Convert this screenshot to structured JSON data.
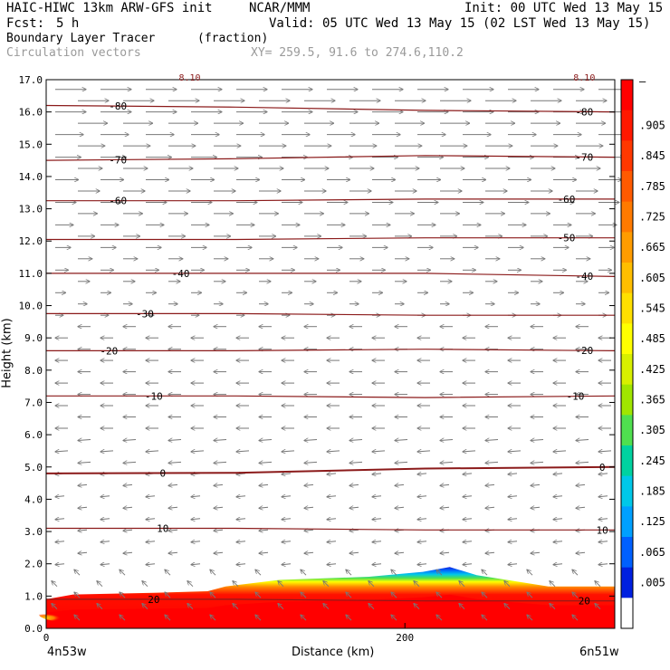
{
  "header": {
    "model": "HAIC-HIWC 13km ARW-GFS init",
    "org": "NCAR/MMM",
    "init": "Init: 00 UTC Wed 13 May 15",
    "fcst_label": "Fcst:",
    "fcst_value": "5 h",
    "valid": "Valid: 05 UTC Wed 13 May 15 (02 LST Wed 13 May 15)",
    "field_name": "Boundary Layer Tracer",
    "field_units": "(fraction)",
    "vector_label": "Circulation vectors",
    "xy_label": "XY= 259.5, 91.6 to 274.6,110.2"
  },
  "chart_data": {
    "type": "heatmap",
    "xlabel": "Distance (km)",
    "ylabel": "Height (km)",
    "xlim": [
      0,
      317
    ],
    "ylim": [
      0.0,
      17.0
    ],
    "x_ticks": [
      {
        "value": 0,
        "label": "0"
      },
      {
        "value": 200,
        "label": "200"
      }
    ],
    "x_end_labels": {
      "left": "4n53w",
      "right": "6n51w"
    },
    "y_ticks": [
      {
        "value": 0.0,
        "label": "0.0"
      },
      {
        "value": 1.0,
        "label": "1.0"
      },
      {
        "value": 2.0,
        "label": "2.0"
      },
      {
        "value": 3.0,
        "label": "3.0"
      },
      {
        "value": 4.0,
        "label": "4.0"
      },
      {
        "value": 5.0,
        "label": "5.0"
      },
      {
        "value": 6.0,
        "label": "6.0"
      },
      {
        "value": 7.0,
        "label": "7.0"
      },
      {
        "value": 8.0,
        "label": "8.0"
      },
      {
        "value": 9.0,
        "label": "9.0"
      },
      {
        "value": 10.0,
        "label": "10.0"
      },
      {
        "value": 11.0,
        "label": "11.0"
      },
      {
        "value": 12.0,
        "label": "12.0"
      },
      {
        "value": 13.0,
        "label": "13.0"
      },
      {
        "value": 14.0,
        "label": "14.0"
      },
      {
        "value": 15.0,
        "label": "15.0"
      },
      {
        "value": 16.0,
        "label": "16.0"
      },
      {
        "value": 17.0,
        "label": "17.0"
      }
    ],
    "colorbar": {
      "labels": [
        "–",
        ".905",
        ".845",
        ".785",
        ".725",
        ".665",
        ".605",
        ".545",
        ".485",
        ".425",
        ".365",
        ".305",
        ".245",
        ".185",
        ".125",
        ".065",
        ".005"
      ],
      "colors": [
        "#ff0000",
        "#ff1800",
        "#ff3800",
        "#ff5a00",
        "#ff7a00",
        "#ff9c00",
        "#ffbe00",
        "#ffe000",
        "#ffff00",
        "#d8f000",
        "#a0e600",
        "#4fe04f",
        "#00d2a0",
        "#00c8e8",
        "#00a0ff",
        "#0060ff",
        "#0020e0",
        "#ffffff"
      ]
    },
    "contour_color": "#8b1a1a",
    "contours": [
      {
        "label": "-80",
        "h": [
          16.2,
          16.15,
          16.05,
          16.0
        ],
        "labels_at": [
          40,
          300
        ]
      },
      {
        "label": "-70",
        "h": [
          14.5,
          14.55,
          14.65,
          14.6
        ],
        "labels_at": [
          40,
          300
        ]
      },
      {
        "label": "-60",
        "h": [
          13.25,
          13.25,
          13.3,
          13.3
        ],
        "labels_at": [
          40,
          290
        ]
      },
      {
        "label": "-50",
        "h": [
          12.05,
          12.05,
          12.1,
          12.1
        ],
        "labels_at": [
          290
        ]
      },
      {
        "label": "-40",
        "h": [
          11.0,
          11.0,
          11.0,
          10.9
        ],
        "labels_at": [
          75,
          300
        ]
      },
      {
        "label": "-30",
        "h": [
          9.75,
          9.75,
          9.7,
          9.7
        ],
        "labels_at": [
          55
        ]
      },
      {
        "label": "-20",
        "h": [
          8.6,
          8.6,
          8.65,
          8.6
        ],
        "labels_at": [
          35,
          300
        ]
      },
      {
        "label": "-10",
        "h": [
          7.2,
          7.2,
          7.15,
          7.2
        ],
        "labels_at": [
          60,
          295
        ]
      },
      {
        "label": "0",
        "h": [
          4.8,
          4.82,
          4.95,
          5.0
        ],
        "labels_at": [
          65,
          310
        ]
      },
      {
        "label": "10",
        "h": [
          3.1,
          3.1,
          3.05,
          3.05
        ],
        "labels_at": [
          65,
          310
        ]
      },
      {
        "label": "20",
        "h": [
          0.9,
          0.9,
          0.85,
          0.85
        ],
        "labels_at": [
          60,
          300
        ]
      }
    ],
    "tracer_top_profile_km": [
      [
        0,
        0.9
      ],
      [
        15,
        1.05
      ],
      [
        60,
        1.1
      ],
      [
        90,
        1.15
      ],
      [
        100,
        1.3
      ],
      [
        130,
        1.5
      ],
      [
        180,
        1.6
      ],
      [
        210,
        1.75
      ],
      [
        225,
        1.9
      ],
      [
        240,
        1.65
      ],
      [
        280,
        1.3
      ],
      [
        317,
        1.3
      ]
    ],
    "vectors": {
      "upper_direction": "eastward",
      "lower_direction": "westward",
      "transition_km": 9.5,
      "color": "#777777"
    },
    "top_partial_labels": [
      "8.10",
      "8.10"
    ]
  }
}
